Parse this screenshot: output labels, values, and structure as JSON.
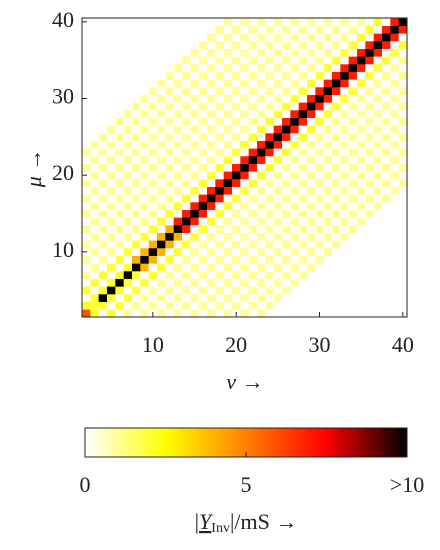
{
  "chart_data": {
    "type": "heatmap",
    "x_label": "ν →",
    "y_label": "μ →",
    "x": [
      2,
      3,
      4,
      5,
      6,
      7,
      8,
      9,
      10,
      11,
      12,
      13,
      14,
      15,
      16,
      17,
      18,
      19,
      20,
      21,
      22,
      23,
      24,
      25,
      26,
      27,
      28,
      29,
      30,
      31,
      32,
      33,
      34,
      35,
      36,
      37,
      38,
      39,
      40
    ],
    "y": [
      2,
      3,
      4,
      5,
      6,
      7,
      8,
      9,
      10,
      11,
      12,
      13,
      14,
      15,
      16,
      17,
      18,
      19,
      20,
      21,
      22,
      23,
      24,
      25,
      26,
      27,
      28,
      29,
      30,
      31,
      32,
      33,
      34,
      35,
      36,
      37,
      38,
      39,
      40
    ],
    "xlim": [
      1.5,
      40.5
    ],
    "ylim": [
      1.5,
      40.5
    ],
    "xticks": [
      10,
      20,
      30,
      40
    ],
    "yticks": [
      10,
      20,
      30,
      40
    ],
    "z": [
      [
        6,
        2,
        0,
        2,
        0,
        1,
        0,
        1,
        0,
        1,
        0,
        1,
        0,
        1,
        0,
        1,
        0,
        1,
        0,
        1,
        0,
        1,
        0,
        0,
        0,
        0,
        0,
        0,
        0,
        0,
        0,
        0,
        0,
        0,
        0,
        0,
        0,
        0,
        0
      ],
      [
        2,
        2,
        2,
        0,
        2,
        0,
        1,
        0,
        1,
        0,
        1,
        0,
        1,
        0,
        1,
        0,
        1,
        0,
        1,
        0,
        1,
        0,
        1,
        0,
        0,
        0,
        0,
        0,
        0,
        0,
        0,
        0,
        0,
        0,
        0,
        0,
        0,
        0,
        0
      ],
      [
        0,
        2,
        11,
        2,
        0,
        2,
        0,
        1,
        0,
        1,
        0,
        1,
        0,
        1,
        0,
        1,
        0,
        1,
        0,
        1,
        0,
        1,
        0,
        1,
        0,
        0,
        0,
        0,
        0,
        0,
        0,
        0,
        0,
        0,
        0,
        0,
        0,
        0,
        0
      ],
      [
        2,
        0,
        2,
        11,
        2,
        0,
        2,
        0,
        1,
        0,
        1,
        0,
        1,
        0,
        1,
        0,
        1,
        0,
        1,
        0,
        1,
        0,
        1,
        0,
        1,
        0,
        0,
        0,
        0,
        0,
        0,
        0,
        0,
        0,
        0,
        0,
        0,
        0,
        0
      ],
      [
        0,
        2,
        0,
        2,
        11,
        2,
        0,
        2,
        0,
        1,
        0,
        1,
        0,
        1,
        0,
        1,
        0,
        1,
        0,
        1,
        0,
        1,
        0,
        1,
        0,
        1,
        0,
        0,
        0,
        0,
        0,
        0,
        0,
        0,
        0,
        0,
        0,
        0,
        0
      ],
      [
        1,
        0,
        2,
        0,
        2,
        11,
        2,
        0,
        2,
        0,
        1,
        0,
        1,
        0,
        1,
        0,
        1,
        0,
        1,
        0,
        1,
        0,
        1,
        0,
        1,
        0,
        1,
        0,
        0,
        0,
        0,
        0,
        0,
        0,
        0,
        0,
        0,
        0,
        0
      ],
      [
        0,
        1,
        0,
        2,
        0,
        2,
        11,
        4,
        0,
        2,
        0,
        1,
        0,
        1,
        0,
        1,
        0,
        1,
        0,
        1,
        0,
        1,
        0,
        1,
        0,
        1,
        0,
        1,
        0,
        0,
        0,
        0,
        0,
        0,
        0,
        0,
        0,
        0,
        0
      ],
      [
        1,
        0,
        1,
        0,
        2,
        0,
        4,
        11,
        4,
        0,
        2,
        0,
        1,
        0,
        1,
        0,
        1,
        0,
        1,
        0,
        1,
        0,
        1,
        0,
        1,
        0,
        1,
        0,
        1,
        0,
        0,
        0,
        0,
        0,
        0,
        0,
        0,
        0,
        0
      ],
      [
        0,
        1,
        0,
        1,
        0,
        2,
        0,
        4,
        11,
        4,
        0,
        2,
        0,
        1,
        0,
        1,
        0,
        1,
        0,
        1,
        0,
        1,
        0,
        1,
        0,
        1,
        0,
        1,
        0,
        1,
        0,
        0,
        0,
        0,
        0,
        0,
        0,
        0,
        0
      ],
      [
        1,
        0,
        1,
        0,
        1,
        0,
        2,
        0,
        4,
        11,
        4,
        0,
        2,
        0,
        1,
        0,
        1,
        0,
        1,
        0,
        1,
        0,
        1,
        0,
        1,
        0,
        1,
        0,
        1,
        0,
        1,
        0,
        0,
        0,
        0,
        0,
        0,
        0,
        0
      ],
      [
        0,
        1,
        0,
        1,
        0,
        1,
        0,
        2,
        0,
        4,
        11,
        4,
        0,
        2,
        0,
        1,
        0,
        1,
        0,
        1,
        0,
        1,
        0,
        1,
        0,
        1,
        0,
        1,
        0,
        1,
        0,
        1,
        0,
        0,
        0,
        0,
        0,
        0,
        0
      ],
      [
        1,
        0,
        1,
        0,
        1,
        0,
        1,
        0,
        2,
        0,
        4,
        11,
        7,
        0,
        2,
        0,
        1,
        0,
        1,
        0,
        1,
        0,
        1,
        0,
        1,
        0,
        1,
        0,
        1,
        0,
        1,
        0,
        1,
        0,
        0,
        0,
        0,
        0,
        0
      ],
      [
        0,
        1,
        0,
        1,
        0,
        1,
        0,
        1,
        0,
        2,
        0,
        7,
        11,
        7,
        0,
        2,
        0,
        1,
        0,
        1,
        0,
        1,
        0,
        1,
        0,
        1,
        0,
        1,
        0,
        1,
        0,
        1,
        0,
        1,
        0,
        0,
        0,
        0,
        0
      ],
      [
        1,
        0,
        1,
        0,
        1,
        0,
        1,
        0,
        1,
        0,
        2,
        0,
        7,
        11,
        7,
        0,
        2,
        0,
        1,
        0,
        1,
        0,
        1,
        0,
        1,
        0,
        1,
        0,
        1,
        0,
        1,
        0,
        1,
        0,
        1,
        0,
        0,
        0,
        0
      ],
      [
        0,
        1,
        0,
        1,
        0,
        1,
        0,
        1,
        0,
        1,
        0,
        2,
        0,
        7,
        11,
        7,
        0,
        2,
        0,
        1,
        0,
        1,
        0,
        1,
        0,
        1,
        0,
        1,
        0,
        1,
        0,
        1,
        0,
        1,
        0,
        1,
        0,
        0,
        0
      ],
      [
        1,
        0,
        1,
        0,
        1,
        0,
        1,
        0,
        1,
        0,
        1,
        0,
        2,
        0,
        7,
        11,
        7,
        0,
        2,
        0,
        1,
        0,
        1,
        0,
        1,
        0,
        1,
        0,
        1,
        0,
        1,
        0,
        1,
        0,
        1,
        0,
        1,
        0,
        0
      ],
      [
        0,
        1,
        0,
        1,
        0,
        1,
        0,
        1,
        0,
        1,
        0,
        1,
        0,
        2,
        0,
        7,
        11,
        7,
        0,
        2,
        0,
        1,
        0,
        1,
        0,
        1,
        0,
        1,
        0,
        1,
        0,
        1,
        0,
        1,
        0,
        1,
        0,
        1,
        0
      ],
      [
        1,
        0,
        1,
        0,
        1,
        0,
        1,
        0,
        1,
        0,
        1,
        0,
        1,
        0,
        2,
        0,
        7,
        11,
        7,
        0,
        2,
        0,
        1,
        0,
        1,
        0,
        1,
        0,
        1,
        0,
        1,
        0,
        1,
        0,
        1,
        0,
        1,
        0,
        1
      ],
      [
        0,
        1,
        0,
        1,
        0,
        1,
        0,
        1,
        0,
        1,
        0,
        1,
        0,
        1,
        0,
        2,
        0,
        7,
        11,
        7,
        0,
        2,
        0,
        1,
        0,
        1,
        0,
        1,
        0,
        1,
        0,
        1,
        0,
        1,
        0,
        1,
        0,
        1,
        0
      ],
      [
        1,
        0,
        1,
        0,
        1,
        0,
        1,
        0,
        1,
        0,
        1,
        0,
        1,
        0,
        1,
        0,
        2,
        0,
        7,
        11,
        7,
        0,
        2,
        0,
        1,
        0,
        1,
        0,
        1,
        0,
        1,
        0,
        1,
        0,
        1,
        0,
        1,
        0,
        1
      ],
      [
        0,
        1,
        0,
        1,
        0,
        1,
        0,
        1,
        0,
        1,
        0,
        1,
        0,
        1,
        0,
        1,
        0,
        2,
        0,
        7,
        11,
        7,
        0,
        2,
        0,
        1,
        0,
        1,
        0,
        1,
        0,
        1,
        0,
        1,
        0,
        1,
        0,
        1,
        0
      ],
      [
        1,
        0,
        1,
        0,
        1,
        0,
        1,
        0,
        1,
        0,
        1,
        0,
        1,
        0,
        1,
        0,
        1,
        0,
        2,
        0,
        7,
        11,
        7,
        0,
        2,
        0,
        1,
        0,
        1,
        0,
        1,
        0,
        1,
        0,
        1,
        0,
        1,
        0,
        1
      ],
      [
        0,
        1,
        0,
        1,
        0,
        1,
        0,
        1,
        0,
        1,
        0,
        1,
        0,
        1,
        0,
        1,
        0,
        1,
        0,
        2,
        0,
        7,
        11,
        7,
        0,
        2,
        0,
        1,
        0,
        1,
        0,
        1,
        0,
        1,
        0,
        1,
        0,
        1,
        0
      ],
      [
        0,
        0,
        1,
        0,
        1,
        0,
        1,
        0,
        1,
        0,
        1,
        0,
        1,
        0,
        1,
        0,
        1,
        0,
        1,
        0,
        2,
        0,
        7,
        11,
        7,
        0,
        2,
        0,
        1,
        0,
        1,
        0,
        1,
        0,
        1,
        0,
        1,
        0,
        1
      ],
      [
        0,
        0,
        0,
        1,
        0,
        1,
        0,
        1,
        0,
        1,
        0,
        1,
        0,
        1,
        0,
        1,
        0,
        1,
        0,
        1,
        0,
        2,
        0,
        7,
        11,
        7,
        0,
        2,
        0,
        1,
        0,
        1,
        0,
        1,
        0,
        1,
        0,
        1,
        0
      ],
      [
        0,
        0,
        0,
        0,
        1,
        0,
        1,
        0,
        1,
        0,
        1,
        0,
        1,
        0,
        1,
        0,
        1,
        0,
        1,
        0,
        1,
        0,
        2,
        0,
        7,
        11,
        7,
        0,
        2,
        0,
        1,
        0,
        1,
        0,
        1,
        0,
        1,
        0,
        1
      ],
      [
        0,
        0,
        0,
        0,
        0,
        1,
        0,
        1,
        0,
        1,
        0,
        1,
        0,
        1,
        0,
        1,
        0,
        1,
        0,
        1,
        0,
        1,
        0,
        2,
        0,
        7,
        11,
        7,
        0,
        2,
        0,
        1,
        0,
        1,
        0,
        1,
        0,
        1,
        0
      ],
      [
        0,
        0,
        0,
        0,
        0,
        0,
        1,
        0,
        1,
        0,
        1,
        0,
        1,
        0,
        1,
        0,
        1,
        0,
        1,
        0,
        1,
        0,
        1,
        0,
        2,
        0,
        7,
        11,
        7,
        0,
        2,
        0,
        1,
        0,
        1,
        0,
        1,
        0,
        1
      ],
      [
        0,
        0,
        0,
        0,
        0,
        0,
        0,
        1,
        0,
        1,
        0,
        1,
        0,
        1,
        0,
        1,
        0,
        1,
        0,
        1,
        0,
        1,
        0,
        1,
        0,
        2,
        0,
        7,
        11,
        7,
        0,
        2,
        0,
        1,
        0,
        1,
        0,
        1,
        0
      ],
      [
        0,
        0,
        0,
        0,
        0,
        0,
        0,
        0,
        1,
        0,
        1,
        0,
        1,
        0,
        1,
        0,
        1,
        0,
        1,
        0,
        1,
        0,
        1,
        0,
        1,
        0,
        2,
        0,
        7,
        11,
        7,
        0,
        2,
        0,
        1,
        0,
        1,
        0,
        1
      ],
      [
        0,
        0,
        0,
        0,
        0,
        0,
        0,
        0,
        0,
        1,
        0,
        1,
        0,
        1,
        0,
        1,
        0,
        1,
        0,
        1,
        0,
        1,
        0,
        1,
        0,
        1,
        0,
        2,
        0,
        7,
        11,
        7,
        0,
        2,
        0,
        1,
        0,
        1,
        0
      ],
      [
        0,
        0,
        0,
        0,
        0,
        0,
        0,
        0,
        0,
        0,
        1,
        0,
        1,
        0,
        1,
        0,
        1,
        0,
        1,
        0,
        1,
        0,
        1,
        0,
        1,
        0,
        1,
        0,
        2,
        0,
        7,
        11,
        7,
        0,
        2,
        0,
        1,
        0,
        1
      ],
      [
        0,
        0,
        0,
        0,
        0,
        0,
        0,
        0,
        0,
        0,
        0,
        1,
        0,
        1,
        0,
        1,
        0,
        1,
        0,
        1,
        0,
        1,
        0,
        1,
        0,
        1,
        0,
        1,
        0,
        2,
        0,
        7,
        11,
        7,
        0,
        2,
        0,
        1,
        0
      ],
      [
        0,
        0,
        0,
        0,
        0,
        0,
        0,
        0,
        0,
        0,
        0,
        0,
        1,
        0,
        1,
        0,
        1,
        0,
        1,
        0,
        1,
        0,
        1,
        0,
        1,
        0,
        1,
        0,
        1,
        0,
        2,
        0,
        7,
        11,
        7,
        0,
        2,
        0,
        1
      ],
      [
        0,
        0,
        0,
        0,
        0,
        0,
        0,
        0,
        0,
        0,
        0,
        0,
        0,
        1,
        0,
        1,
        0,
        1,
        0,
        1,
        0,
        1,
        0,
        1,
        0,
        1,
        0,
        1,
        0,
        1,
        0,
        2,
        0,
        7,
        11,
        7,
        0,
        2,
        0
      ],
      [
        0,
        0,
        0,
        0,
        0,
        0,
        0,
        0,
        0,
        0,
        0,
        0,
        0,
        0,
        1,
        0,
        1,
        0,
        1,
        0,
        1,
        0,
        1,
        0,
        1,
        0,
        1,
        0,
        1,
        0,
        1,
        0,
        2,
        0,
        7,
        11,
        7,
        0,
        2
      ],
      [
        0,
        0,
        0,
        0,
        0,
        0,
        0,
        0,
        0,
        0,
        0,
        0,
        0,
        0,
        0,
        1,
        0,
        1,
        0,
        1,
        0,
        1,
        0,
        1,
        0,
        1,
        0,
        1,
        0,
        1,
        0,
        1,
        0,
        2,
        0,
        7,
        11,
        7,
        0
      ],
      [
        0,
        0,
        0,
        0,
        0,
        0,
        0,
        0,
        0,
        0,
        0,
        0,
        0,
        0,
        0,
        0,
        1,
        0,
        1,
        0,
        1,
        0,
        1,
        0,
        1,
        0,
        1,
        0,
        1,
        0,
        1,
        0,
        1,
        0,
        2,
        0,
        7,
        11,
        7
      ],
      [
        0,
        0,
        0,
        0,
        0,
        0,
        0,
        0,
        0,
        0,
        0,
        0,
        0,
        0,
        0,
        0,
        0,
        1,
        0,
        1,
        0,
        1,
        0,
        1,
        0,
        1,
        0,
        1,
        0,
        1,
        0,
        1,
        0,
        1,
        0,
        2,
        0,
        7,
        11
      ]
    ],
    "colormap": [
      "#ffffff",
      "#ffff00",
      "#ff8000",
      "#ff0000",
      "#000000"
    ],
    "clim": [
      0,
      10
    ],
    "colorbar_ticks": [
      0,
      5,
      {
        "value": 10,
        "label": ">10"
      }
    ],
    "colorbar_label": {
      "open": "|",
      "symbol": "Y",
      "subscript": "Inv",
      "close": "|/mS →"
    }
  }
}
